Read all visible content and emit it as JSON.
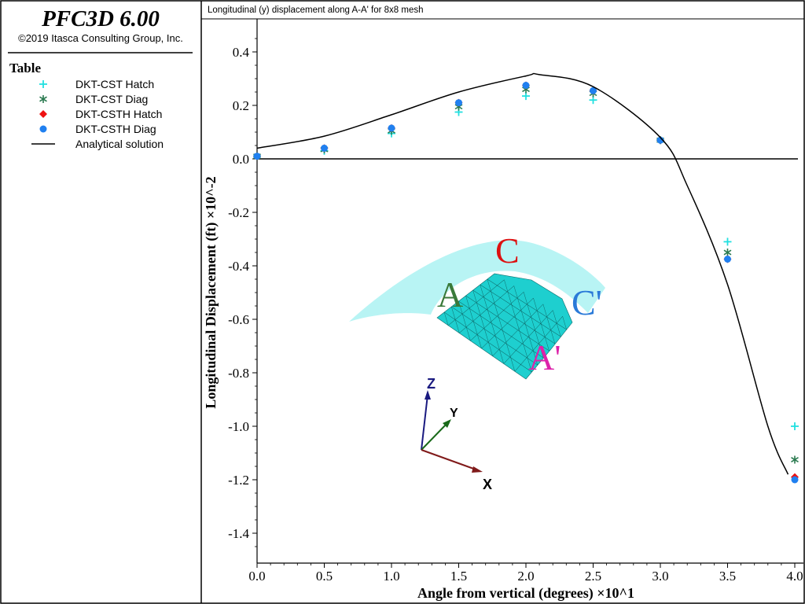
{
  "app": {
    "title": "PFC3D 6.00",
    "copyright": "©2019 Itasca Consulting Group, Inc."
  },
  "legend": {
    "heading": "Table",
    "items": [
      {
        "label": "DKT-CST Hatch",
        "symbol": "plus",
        "color": "#22e0e0"
      },
      {
        "label": "DKT-CST Diag",
        "symbol": "asterisk",
        "color": "#2a7a50"
      },
      {
        "label": "DKT-CSTH Hatch",
        "symbol": "diamond",
        "color": "#ee1111"
      },
      {
        "label": "DKT-CSTH Diag",
        "symbol": "circle",
        "color": "#2080f0"
      },
      {
        "label": "Analytical solution",
        "symbol": "line",
        "color": "#000000"
      }
    ]
  },
  "plot_header": "Longitudinal (y) displacement along A-A' for 8x8 mesh",
  "inset": {
    "labels": {
      "a": "A",
      "c": "C",
      "c_prime": "C'",
      "a_prime": "A'"
    },
    "colors": {
      "surface": "#b8f4f4",
      "mesh": "#1ecfcf",
      "a": "#3a7a3a",
      "c": "#dd1111",
      "c_prime": "#2a7ad8",
      "a_prime": "#dd22aa"
    },
    "axes": {
      "z": "Z",
      "y": "Y",
      "x": "X"
    },
    "axis_colors": {
      "z": "#1a1a80",
      "y": "#1a6a1a",
      "x": "#801a1a"
    }
  },
  "chart_data": {
    "type": "scatter",
    "xlabel": "Angle from vertical (degrees) ×10^1",
    "ylabel": "Longitudinal Displacement (ft) ×10^-2",
    "xlim": [
      0.0,
      4.0
    ],
    "ylim": [
      -1.5,
      0.5
    ],
    "x_ticks": [
      "0.0",
      "0.5",
      "1.0",
      "1.5",
      "2.0",
      "2.5",
      "3.0",
      "3.5",
      "4.0"
    ],
    "y_ticks": [
      "0.4",
      "0.2",
      "0.0",
      "-0.2",
      "-0.4",
      "-0.6",
      "-0.8",
      "-1.0",
      "-1.2",
      "-1.4"
    ],
    "series": [
      {
        "name": "DKT-CST Hatch",
        "marker": "plus",
        "color": "#22e0e0",
        "x": [
          0.0,
          0.5,
          1.0,
          1.5,
          2.0,
          2.5,
          3.0,
          3.5,
          4.0
        ],
        "y": [
          0.01,
          0.03,
          0.095,
          0.175,
          0.235,
          0.22,
          0.07,
          -0.31,
          -1.0
        ]
      },
      {
        "name": "DKT-CST Diag",
        "marker": "asterisk",
        "color": "#2a7a50",
        "x": [
          0.0,
          0.5,
          1.0,
          1.5,
          2.0,
          2.5,
          3.0,
          3.5,
          4.0
        ],
        "y": [
          0.01,
          0.035,
          0.105,
          0.195,
          0.26,
          0.245,
          0.07,
          -0.35,
          -1.125
        ]
      },
      {
        "name": "DKT-CSTH Hatch",
        "marker": "diamond",
        "color": "#ee1111",
        "x": [
          0.0,
          0.5,
          1.0,
          1.5,
          2.0,
          2.5,
          3.0,
          3.5,
          4.0
        ],
        "y": [
          0.01,
          0.04,
          0.115,
          0.21,
          0.275,
          0.255,
          0.07,
          -0.375,
          -1.19
        ]
      },
      {
        "name": "DKT-CSTH Diag",
        "marker": "circle",
        "color": "#2080f0",
        "x": [
          0.0,
          0.5,
          1.0,
          1.5,
          2.0,
          2.5,
          3.0,
          3.5,
          4.0
        ],
        "y": [
          0.01,
          0.04,
          0.115,
          0.21,
          0.275,
          0.255,
          0.07,
          -0.375,
          -1.2
        ]
      },
      {
        "name": "Analytical solution",
        "marker": "line",
        "color": "#000000",
        "x": [
          0.0,
          0.5,
          1.0,
          1.5,
          2.0,
          2.1,
          2.5,
          3.0,
          3.2,
          3.5,
          3.8,
          3.95
        ],
        "y": [
          0.04,
          0.085,
          0.165,
          0.25,
          0.31,
          0.315,
          0.27,
          0.08,
          -0.1,
          -0.47,
          -1.0,
          -1.18
        ]
      }
    ],
    "legend_position": "left-panel",
    "grid": false
  }
}
